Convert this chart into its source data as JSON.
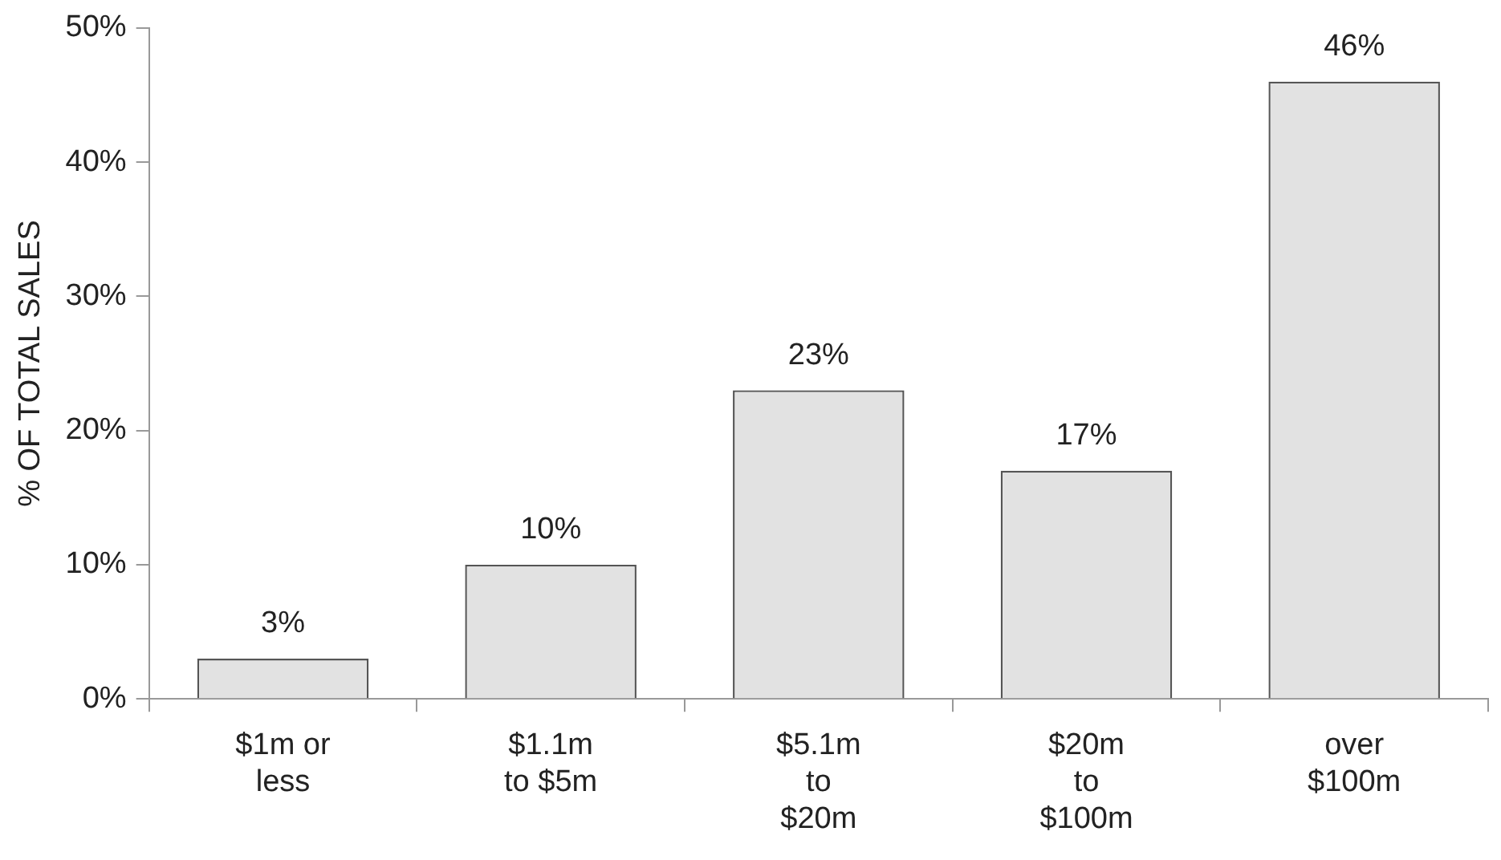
{
  "chart_data": {
    "type": "bar",
    "ylabel": "% OF TOTAL SALES",
    "categories": [
      "$1m or\nless",
      "$1.1m\nto $5m",
      "$5.1m\nto\n$20m",
      "$20m\nto\n$100m",
      "over\n$100m"
    ],
    "values": [
      3,
      10,
      23,
      17,
      46
    ],
    "value_labels": [
      "3%",
      "10%",
      "23%",
      "17%",
      "46%"
    ],
    "color": "#e2e2e2",
    "ylim": [
      0,
      50
    ],
    "yticks": [
      {
        "value": 0,
        "label": "0%"
      },
      {
        "value": 10,
        "label": "10%"
      },
      {
        "value": 20,
        "label": "20%"
      },
      {
        "value": 30,
        "label": "30%"
      },
      {
        "value": 40,
        "label": "40%"
      },
      {
        "value": 50,
        "label": "50%"
      }
    ],
    "grid": false,
    "legend": false
  }
}
